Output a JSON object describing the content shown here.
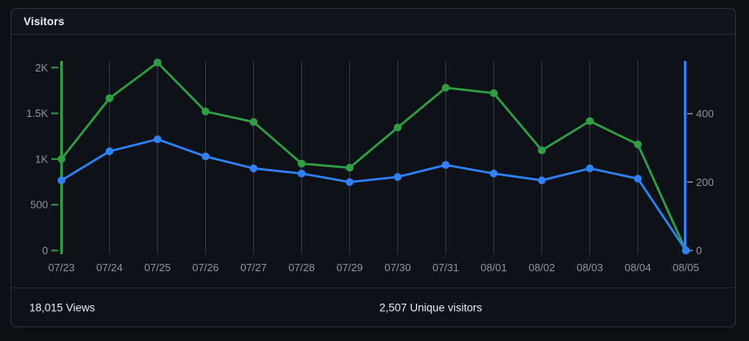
{
  "header": {
    "title": "Visitors"
  },
  "footer": {
    "views_label": "18,015 Views",
    "unique_label": "2,507 Unique visitors"
  },
  "chart_data": {
    "type": "line",
    "title": "Visitors",
    "categories": [
      "07/23",
      "07/24",
      "07/25",
      "07/26",
      "07/27",
      "07/28",
      "07/29",
      "07/30",
      "07/31",
      "08/01",
      "08/02",
      "08/03",
      "08/04",
      "08/05"
    ],
    "series": [
      {
        "name": "Views",
        "axis": "left",
        "color": "#2ea043",
        "values": [
          1000,
          1665,
          2055,
          1520,
          1405,
          950,
          905,
          1345,
          1780,
          1720,
          1095,
          1415,
          1160,
          0
        ]
      },
      {
        "name": "Unique visitors",
        "axis": "right",
        "color": "#2f81f7",
        "values": [
          205,
          290,
          325,
          275,
          240,
          225,
          200,
          215,
          250,
          225,
          205,
          240,
          210,
          0
        ]
      }
    ],
    "left_axis": {
      "color": "#2ea043",
      "range": [
        0,
        2095
      ],
      "ticks": [
        {
          "value": 0,
          "label": "0"
        },
        {
          "value": 500,
          "label": "500"
        },
        {
          "value": 1000,
          "label": "1K"
        },
        {
          "value": 1500,
          "label": "1.5K"
        },
        {
          "value": 2000,
          "label": "2K"
        }
      ]
    },
    "right_axis": {
      "color": "#2f81f7",
      "range": [
        0,
        554
      ],
      "ticks": [
        {
          "value": 0,
          "label": "0"
        },
        {
          "value": 200,
          "label": "200"
        },
        {
          "value": 400,
          "label": "400"
        }
      ]
    },
    "grid": "vertical-only",
    "legend": "none",
    "totals": {
      "views": "18,015",
      "unique_visitors": "2,507"
    }
  },
  "colors": {
    "page_bg": "#0c0f14",
    "card_bg": "#0e1218",
    "card_border": "#2b323b",
    "divider": "#262c34",
    "gridline": "#343b44",
    "axis_label": "#8e96a0",
    "text": "#e6edf3",
    "views_green": "#2ea043",
    "unique_blue": "#2f81f7"
  }
}
